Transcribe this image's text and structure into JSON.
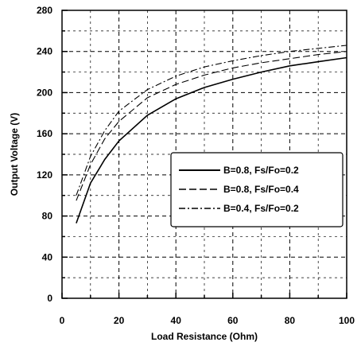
{
  "chart_data": {
    "type": "line",
    "title": "",
    "xlabel": "Load Resistance (Ohm)",
    "ylabel": "Output Voltage (V)",
    "xlim": [
      0,
      100
    ],
    "ylim": [
      0,
      280
    ],
    "xticks": [
      "0",
      "20",
      "40",
      "60",
      "80",
      "100"
    ],
    "yticks": [
      "0",
      "40",
      "80",
      "120",
      "160",
      "200",
      "240",
      "280"
    ],
    "grid": true,
    "legend_position": "right",
    "series": [
      {
        "name": "B=0.8, Fs/Fo=0.2",
        "style": "solid",
        "x": [
          5,
          10,
          15,
          20,
          30,
          40,
          50,
          60,
          70,
          80,
          90,
          100
        ],
        "y": [
          73,
          112,
          135,
          153,
          178,
          194,
          205,
          213,
          220,
          226,
          230,
          234
        ]
      },
      {
        "name": "B=0.8, Fs/Fo=0.4",
        "style": "dashed",
        "x": [
          5,
          10,
          15,
          20,
          30,
          40,
          50,
          60,
          70,
          80,
          90,
          100
        ],
        "y": [
          95,
          130,
          155,
          172,
          195,
          208,
          217,
          224,
          229,
          233,
          237,
          240
        ]
      },
      {
        "name": "B=0.4, Fs/Fo=0.2",
        "style": "dashdot",
        "x": [
          5,
          10,
          15,
          20,
          30,
          40,
          50,
          60,
          70,
          80,
          90,
          100
        ],
        "y": [
          100,
          138,
          163,
          182,
          203,
          216,
          225,
          231,
          236,
          240,
          243,
          246
        ]
      }
    ]
  }
}
